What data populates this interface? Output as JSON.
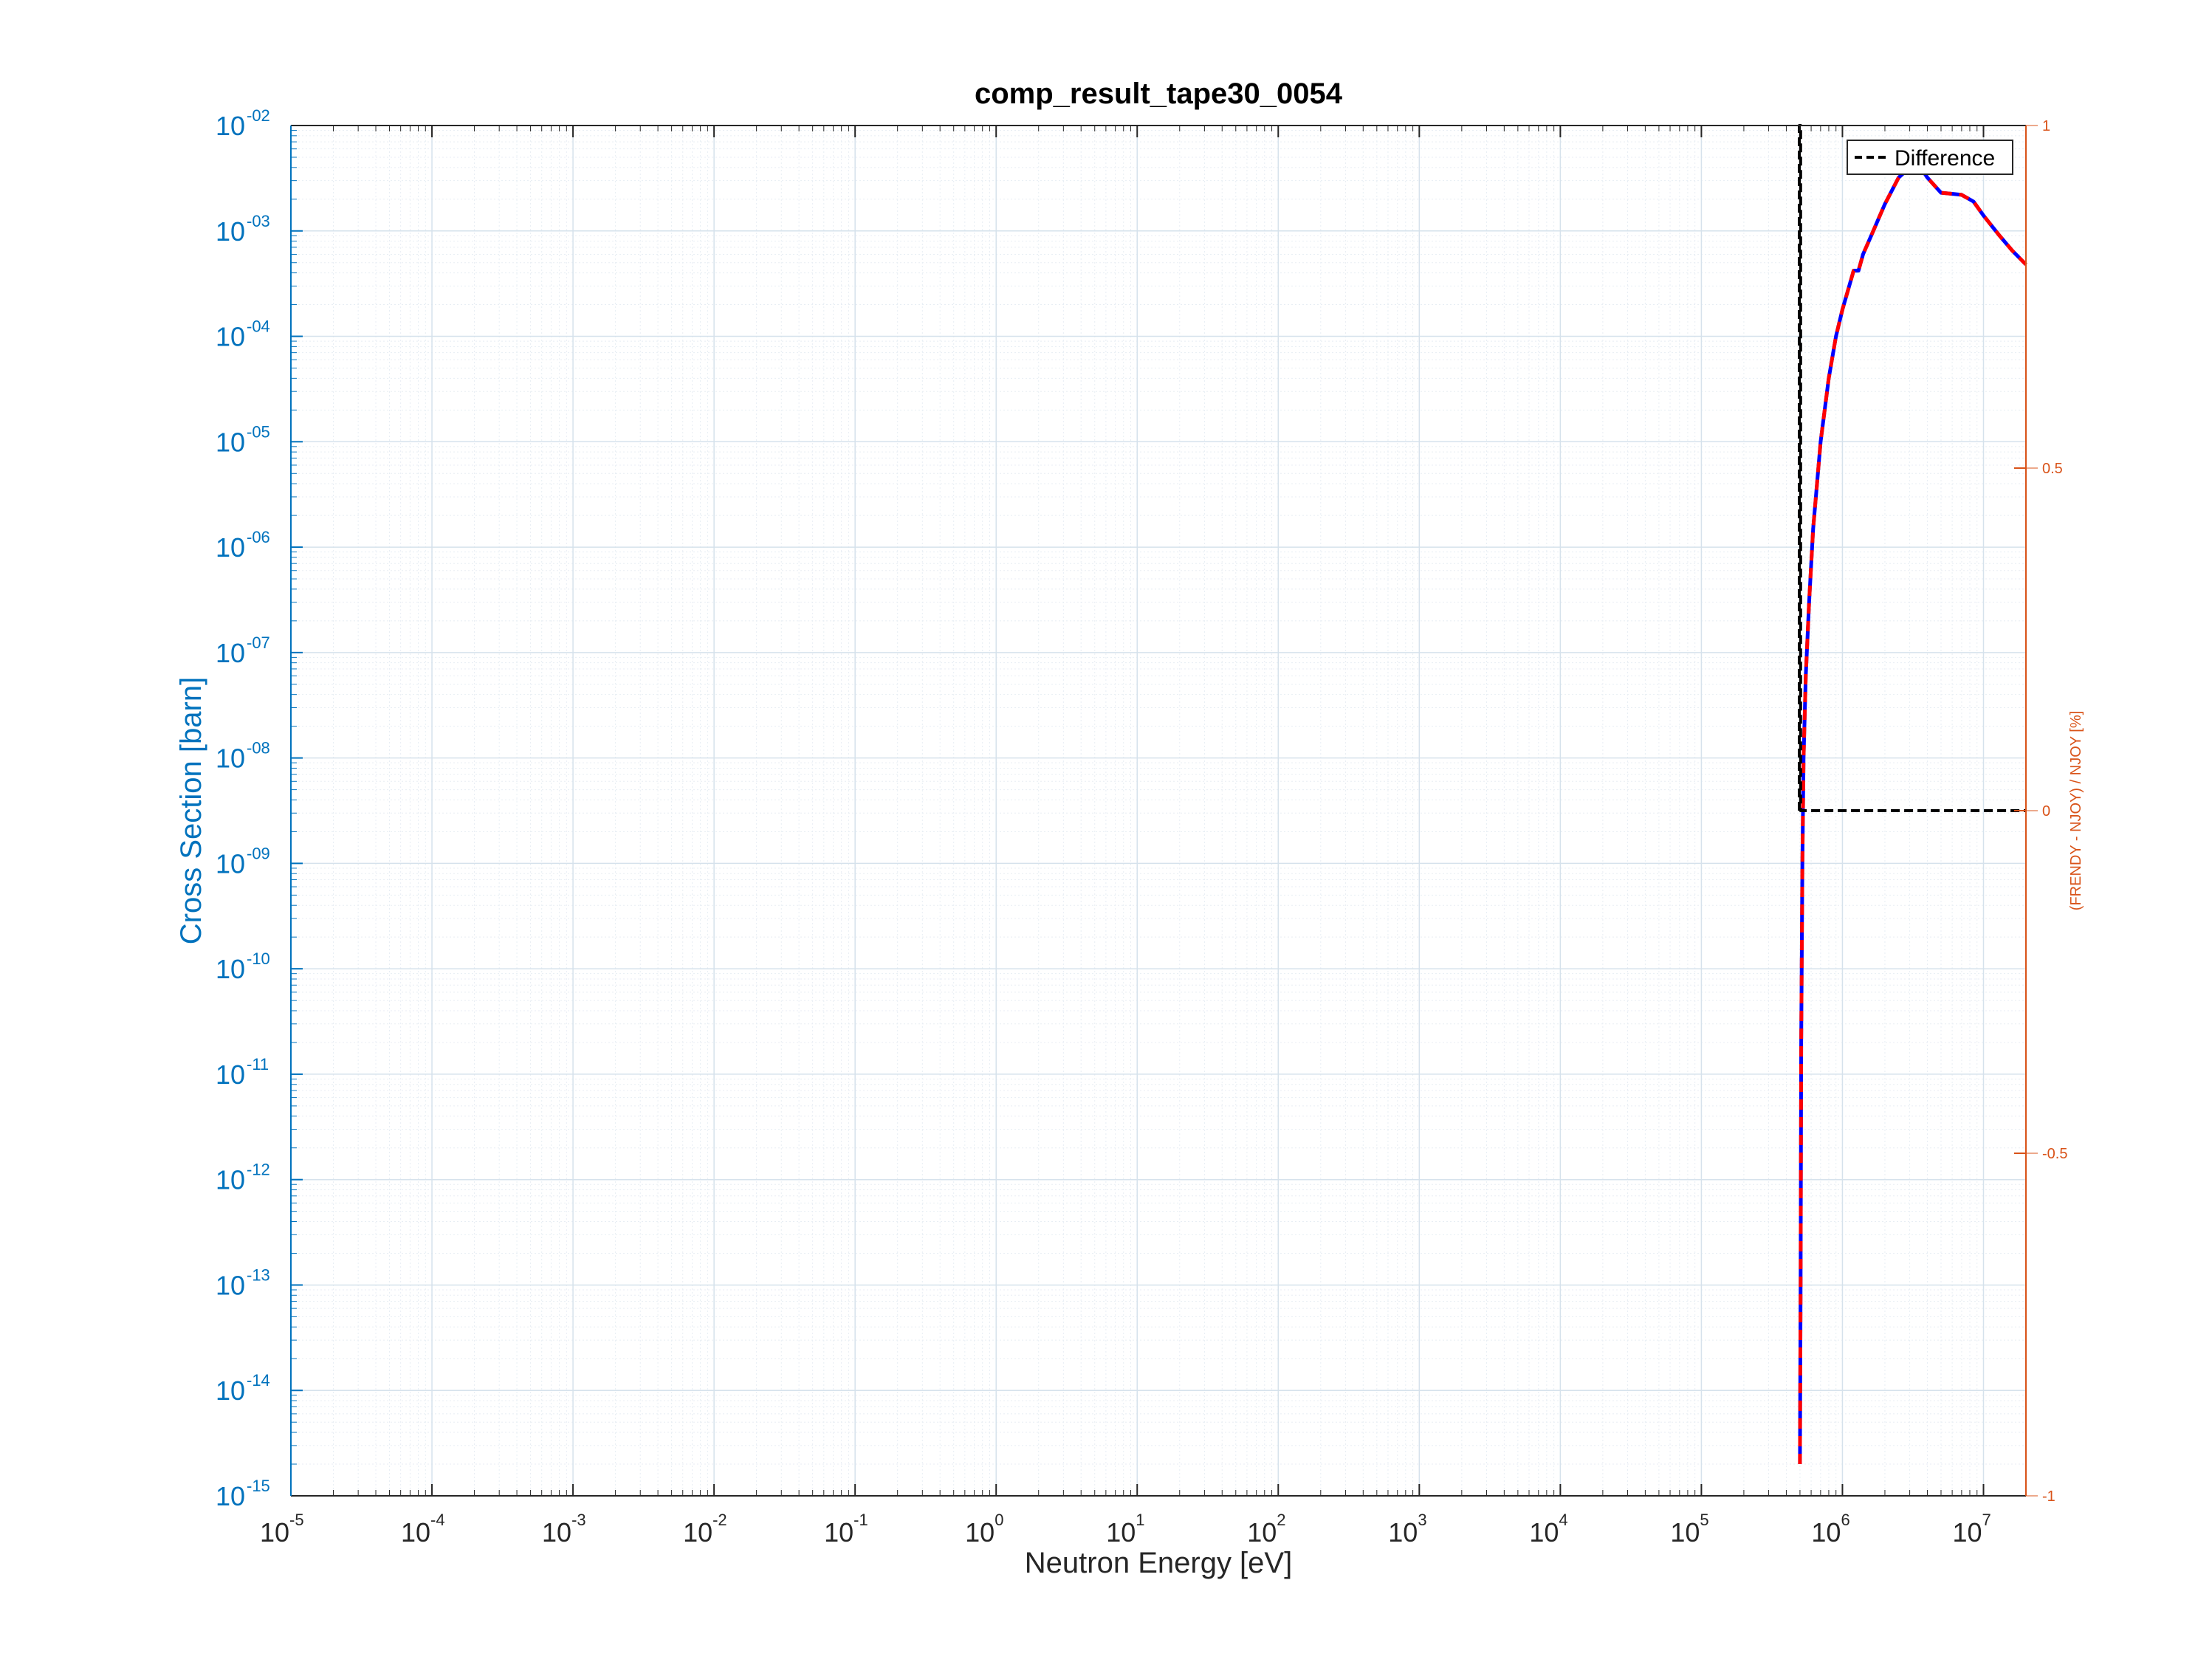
{
  "chart_data": {
    "type": "line",
    "title": "comp_result_tape30_0054",
    "xlabel": "Neutron Energy [eV]",
    "ylabel": "Cross Section [barn]",
    "y2label": "(FRENDY - NJOY) / NJOY [%]",
    "xscale": "log",
    "yscale": "log",
    "xlim": [
      1e-05,
      20000000.0
    ],
    "ylim": [
      1e-15,
      0.01
    ],
    "y2lim": [
      -1,
      1
    ],
    "grid": true,
    "legend_position": "top-right",
    "legend": [
      "Difference"
    ],
    "x_ticks": [
      {
        "base": "10",
        "exp": "-5"
      },
      {
        "base": "10",
        "exp": "-4"
      },
      {
        "base": "10",
        "exp": "-3"
      },
      {
        "base": "10",
        "exp": "-2"
      },
      {
        "base": "10",
        "exp": "-1"
      },
      {
        "base": "10",
        "exp": "0"
      },
      {
        "base": "10",
        "exp": "1"
      },
      {
        "base": "10",
        "exp": "2"
      },
      {
        "base": "10",
        "exp": "3"
      },
      {
        "base": "10",
        "exp": "4"
      },
      {
        "base": "10",
        "exp": "5"
      },
      {
        "base": "10",
        "exp": "6"
      },
      {
        "base": "10",
        "exp": "7"
      }
    ],
    "y_ticks": [
      {
        "base": "10",
        "exp": "-15"
      },
      {
        "base": "10",
        "exp": "-14"
      },
      {
        "base": "10",
        "exp": "-13"
      },
      {
        "base": "10",
        "exp": "-12"
      },
      {
        "base": "10",
        "exp": "-11"
      },
      {
        "base": "10",
        "exp": "-10"
      },
      {
        "base": "10",
        "exp": "-09"
      },
      {
        "base": "10",
        "exp": "-08"
      },
      {
        "base": "10",
        "exp": "-07"
      },
      {
        "base": "10",
        "exp": "-06"
      },
      {
        "base": "10",
        "exp": "-05"
      },
      {
        "base": "10",
        "exp": "-04"
      },
      {
        "base": "10",
        "exp": "-03"
      },
      {
        "base": "10",
        "exp": "-02"
      }
    ],
    "y2_ticks": [
      "-1",
      "-0.5",
      "0",
      "0.5",
      "1"
    ],
    "series": [
      {
        "name": "NJOY",
        "color": "#0000ff",
        "style": "solid",
        "axis": "left",
        "x": [
          500000.0,
          505000.0,
          510000.0,
          520000.0,
          530000.0,
          550000.0,
          580000.0,
          620000.0,
          700000.0,
          800000.0,
          900000.0,
          1000000.0,
          1100000.0,
          1200000.0,
          1300000.0,
          1400000.0,
          1600000.0,
          2000000.0,
          2500000.0,
          3000000.0,
          3500000.0,
          4000000.0,
          5000000.0,
          6000000.0,
          7000000.0,
          8500000.0,
          10000000.0,
          13000000.0,
          16000000.0,
          20000000.0
        ],
        "y": [
          2e-15,
          1e-13,
          2e-11,
          1e-09,
          1e-08,
          6e-08,
          3e-07,
          1.5e-06,
          1e-05,
          4e-05,
          0.0001,
          0.00018,
          0.00028,
          0.00042,
          0.00042,
          0.0006,
          0.0009,
          0.0018,
          0.0032,
          0.004,
          0.0042,
          0.0032,
          0.0023,
          0.00225,
          0.0022,
          0.0019,
          0.0014,
          0.0009,
          0.00065,
          0.00048
        ]
      },
      {
        "name": "FRENDY",
        "color": "#ff0000",
        "style": "dashed",
        "axis": "left",
        "x": [
          500000.0,
          505000.0,
          510000.0,
          520000.0,
          530000.0,
          550000.0,
          580000.0,
          620000.0,
          700000.0,
          800000.0,
          900000.0,
          1000000.0,
          1100000.0,
          1200000.0,
          1300000.0,
          1400000.0,
          1600000.0,
          2000000.0,
          2500000.0,
          3000000.0,
          3500000.0,
          4000000.0,
          5000000.0,
          6000000.0,
          7000000.0,
          8500000.0,
          10000000.0,
          13000000.0,
          16000000.0,
          20000000.0
        ],
        "y": [
          2e-15,
          1e-13,
          2e-11,
          1e-09,
          1e-08,
          6e-08,
          3e-07,
          1.5e-06,
          1e-05,
          4e-05,
          0.0001,
          0.00018,
          0.00028,
          0.00042,
          0.00042,
          0.0006,
          0.0009,
          0.0018,
          0.0032,
          0.004,
          0.0042,
          0.0032,
          0.0023,
          0.00225,
          0.0022,
          0.0019,
          0.0014,
          0.0009,
          0.00065,
          0.00048
        ]
      },
      {
        "name": "Difference",
        "color": "#000000",
        "style": "dashed",
        "axis": "right",
        "x": [
          495000.0,
          495000.0,
          505000.0,
          505000.0,
          20000000.0
        ],
        "y": [
          0,
          1,
          1,
          0,
          0
        ]
      }
    ]
  }
}
